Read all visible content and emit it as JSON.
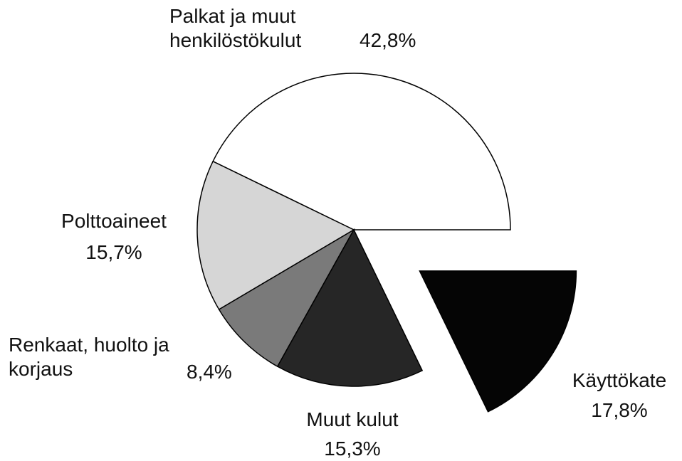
{
  "chart_data": {
    "type": "pie",
    "categories": [
      "Palkat ja muut henkilöstökulut",
      "Polttoaineet",
      "Renkaat, huolto ja korjaus",
      "Muut kulut",
      "Käyttökate"
    ],
    "values": [
      42.8,
      15.7,
      8.4,
      15.3,
      17.8
    ],
    "value_labels": [
      "42,8%",
      "15,7%",
      "8,4%",
      "15,3%",
      "17,8%"
    ],
    "colors": [
      "#ffffff",
      "#d6d6d6",
      "#7a7a7a",
      "#262626",
      "#050505"
    ]
  }
}
